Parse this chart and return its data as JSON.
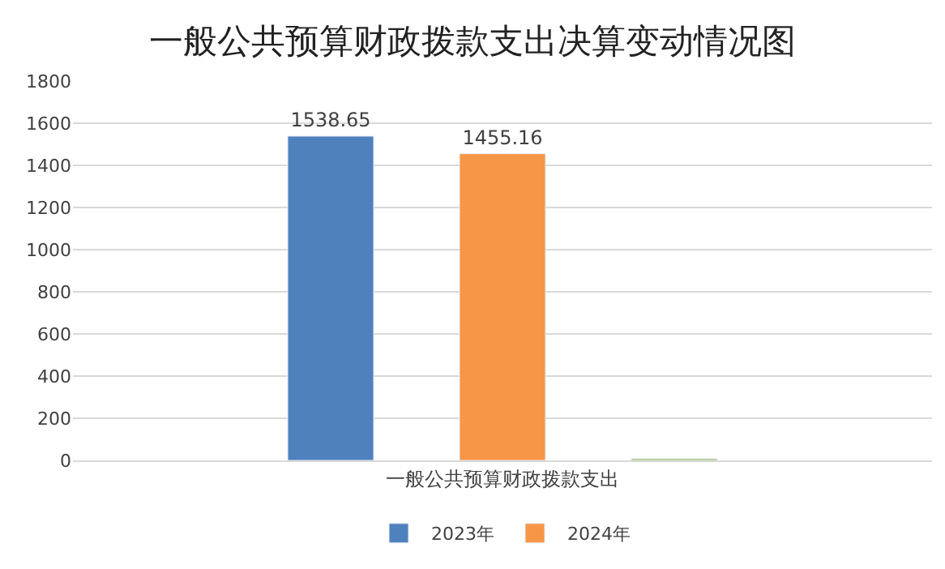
{
  "chart_data": {
    "type": "bar",
    "title": "一般公共预算财政拨款支出决算变动情况图",
    "categories": [
      "一般公共预算财政拨款支出"
    ],
    "series": [
      {
        "name": "2023年",
        "color": "#4f81bd",
        "values": [
          1538.65
        ],
        "value_labels": [
          "1538.65"
        ]
      },
      {
        "name": "2024年",
        "color": "#f79646",
        "values": [
          1455.16
        ],
        "value_labels": [
          "1455.16"
        ]
      },
      {
        "color": "#9bbb59",
        "values": [
          8
        ]
      }
    ],
    "ylim": [
      0,
      1800
    ],
    "yticks": [
      0,
      200,
      400,
      600,
      800,
      1000,
      1200,
      1400,
      1600,
      1800
    ],
    "grid": "y",
    "legend": "bottom"
  }
}
